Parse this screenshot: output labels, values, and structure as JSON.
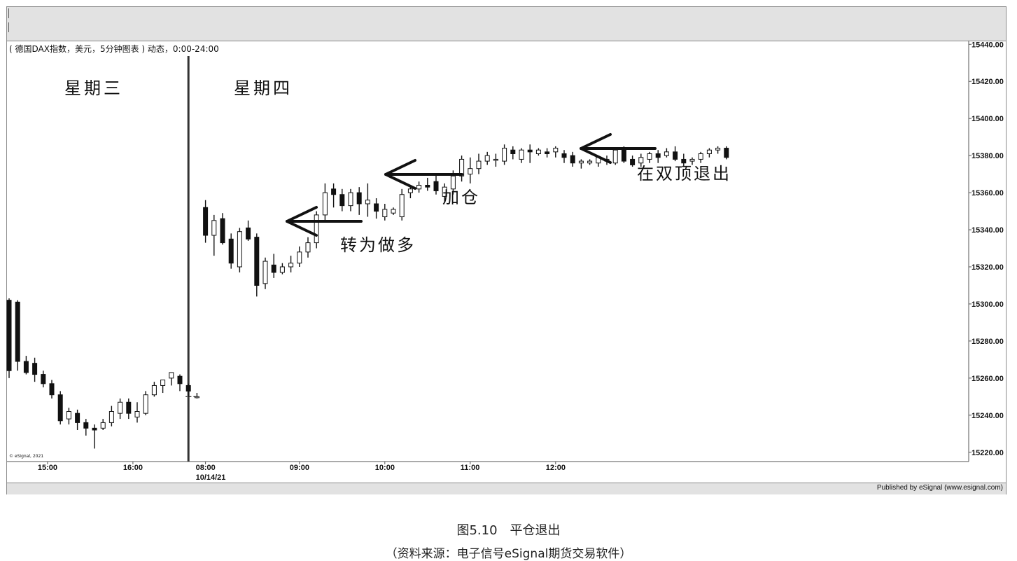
{
  "header": "( 德国DAX指数，美元，5分钟图表 ) 动态，0:00-24:00",
  "day_labels": {
    "wednesday": "星期三",
    "thursday": "星期四"
  },
  "annotations": {
    "go_long": "转为做多",
    "add_position": "加仓",
    "exit_double_top": "在双顶退出"
  },
  "copyright": "© eSignal, 2021",
  "published": "Published by eSignal (www.esignal.com)",
  "caption": {
    "title": "图5.10　平仓退出",
    "source": "（资料来源：电子信号eSignal期货交易软件）"
  },
  "colors": {
    "up_fill": "#ffffff",
    "down_fill": "#111111",
    "line": "#111111",
    "panel_bg": "#e2e2e2"
  },
  "chart_data": {
    "type": "candlestick",
    "title": "( 德国DAX指数，美元，5分钟图表 ) 动态，0:00-24:00",
    "ylim": [
      15215,
      15442
    ],
    "y_ticks": [
      "15220.00",
      "15240.00",
      "15260.00",
      "15280.00",
      "15300.00",
      "15320.00",
      "15340.00",
      "15360.00",
      "15380.00",
      "15400.00",
      "15420.00",
      "15440.00"
    ],
    "y_tick_values": [
      15220,
      15240,
      15260,
      15280,
      15300,
      15320,
      15340,
      15360,
      15380,
      15400,
      15420,
      15440
    ],
    "x_ticks": [
      {
        "label": "15:00",
        "bar": 4.5
      },
      {
        "label": "16:00",
        "bar": 14.5
      },
      {
        "label": "08:00",
        "label2": "10/14/21",
        "bar": 23
      },
      {
        "label": "09:00",
        "bar": 34
      },
      {
        "label": "10:00",
        "bar": 44
      },
      {
        "label": "11:00",
        "bar": 54
      },
      {
        "label": "12:00",
        "bar": 64
      }
    ],
    "session_break_after_bar": 20.5,
    "grid": false,
    "bars": [
      [
        15302,
        15303,
        15260,
        15264
      ],
      [
        15301,
        15302,
        15264,
        15269
      ],
      [
        15269,
        15272,
        15262,
        15263
      ],
      [
        15268,
        15271,
        15258,
        15262
      ],
      [
        15262,
        15264,
        15255,
        15257
      ],
      [
        15257,
        15259,
        15249,
        15251
      ],
      [
        15251,
        15253,
        15235,
        15237
      ],
      [
        15238,
        15244,
        15235,
        15242
      ],
      [
        15241,
        15243,
        15232,
        15236
      ],
      [
        15236,
        15238,
        15229,
        15233
      ],
      [
        15233,
        15235,
        15222,
        15232
      ],
      [
        15233,
        15238,
        15232,
        15236
      ],
      [
        15236,
        15245,
        15234,
        15242
      ],
      [
        15241,
        15249,
        15238,
        15247
      ],
      [
        15247,
        15249,
        15238,
        15241
      ],
      [
        15239,
        15247,
        15236,
        15242
      ],
      [
        15241,
        15253,
        15240,
        15251
      ],
      [
        15251,
        15258,
        15250,
        15256
      ],
      [
        15256,
        15259,
        15252,
        15259
      ],
      [
        15260,
        15263,
        15256,
        15263
      ],
      [
        15261,
        15262,
        15253,
        15257
      ],
      [
        15256,
        15257,
        15250,
        15253
      ],
      [
        15250,
        15252,
        15249,
        15250
      ],
      [
        15352,
        15356,
        15333,
        15337
      ],
      [
        15337,
        15348,
        15326,
        15345
      ],
      [
        15346,
        15349,
        15332,
        15333
      ],
      [
        15335,
        15338,
        15319,
        15322
      ],
      [
        15320,
        15341,
        15317,
        15339
      ],
      [
        15341,
        15345,
        15334,
        15335
      ],
      [
        15336,
        15338,
        15304,
        15310
      ],
      [
        15311,
        15325,
        15308,
        15323
      ],
      [
        15321,
        15327,
        15314,
        15317
      ],
      [
        15317,
        15322,
        15316,
        15320
      ],
      [
        15320,
        15326,
        15317,
        15322
      ],
      [
        15322,
        15331,
        15320,
        15328
      ],
      [
        15328,
        15336,
        15325,
        15333
      ],
      [
        15333,
        15350,
        15330,
        15348
      ],
      [
        15348,
        15365,
        15345,
        15360
      ],
      [
        15362,
        15365,
        15352,
        15359
      ],
      [
        15359,
        15362,
        15350,
        15353
      ],
      [
        15353,
        15362,
        15350,
        15360
      ],
      [
        15360,
        15363,
        15348,
        15354
      ],
      [
        15354,
        15365,
        15347,
        15356
      ],
      [
        15354,
        15357,
        15346,
        15350
      ],
      [
        15347,
        15354,
        15345,
        15351
      ],
      [
        15349,
        15352,
        15348,
        15351
      ],
      [
        15347,
        15362,
        15345,
        15359
      ],
      [
        15360,
        15364,
        15357,
        15362
      ],
      [
        15362,
        15366,
        15360,
        15364
      ],
      [
        15364,
        15368,
        15361,
        15363
      ],
      [
        15366,
        15370,
        15359,
        15361
      ],
      [
        15358,
        15365,
        15355,
        15363
      ],
      [
        15362,
        15372,
        15359,
        15369
      ],
      [
        15369,
        15380,
        15366,
        15378
      ],
      [
        15370,
        15379,
        15365,
        15373
      ],
      [
        15373,
        15381,
        15370,
        15377
      ],
      [
        15377,
        15382,
        15375,
        15380
      ],
      [
        15378,
        15381,
        15374,
        15378
      ],
      [
        15377,
        15386,
        15375,
        15384
      ],
      [
        15383,
        15385,
        15378,
        15381
      ],
      [
        15378,
        15384,
        15376,
        15383
      ],
      [
        15383,
        15386,
        15376,
        15382
      ],
      [
        15381,
        15384,
        15380,
        15383
      ],
      [
        15382,
        15384,
        15379,
        15381
      ],
      [
        15382,
        15385,
        15379,
        15384
      ],
      [
        15381,
        15383,
        15376,
        15379
      ],
      [
        15380,
        15382,
        15374,
        15376
      ],
      [
        15376,
        15378,
        15373,
        15377
      ],
      [
        15376,
        15378,
        15375,
        15377
      ],
      [
        15376,
        15380,
        15374,
        15379
      ],
      [
        15377,
        15380,
        15375,
        15378
      ],
      [
        15376,
        15384,
        15375,
        15383
      ],
      [
        15383,
        15385,
        15376,
        15377
      ],
      [
        15378,
        15380,
        15374,
        15375
      ],
      [
        15376,
        15381,
        15374,
        15379
      ],
      [
        15378,
        15382,
        15376,
        15381
      ],
      [
        15381,
        15383,
        15376,
        15379
      ],
      [
        15380,
        15384,
        15379,
        15382
      ],
      [
        15382,
        15385,
        15377,
        15378
      ],
      [
        15378,
        15381,
        15374,
        15376
      ],
      [
        15377,
        15379,
        15375,
        15378
      ],
      [
        15378,
        15382,
        15376,
        15381
      ],
      [
        15381,
        15384,
        15379,
        15383
      ],
      [
        15383,
        15385,
        15381,
        15384
      ],
      [
        15384,
        15385,
        15378,
        15379
      ]
    ]
  }
}
